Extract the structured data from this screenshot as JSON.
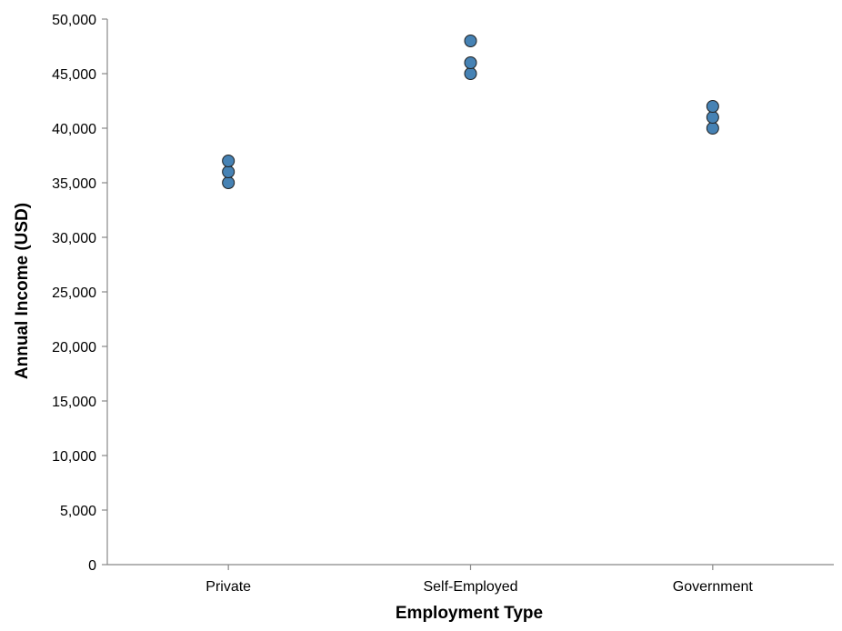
{
  "chart_data": {
    "type": "scatter",
    "title": "",
    "xlabel": "Employment Type",
    "ylabel": "Annual Income (USD)",
    "categories": [
      "Private",
      "Self-Employed",
      "Government"
    ],
    "ylim": [
      0,
      50000
    ],
    "yticks": [
      0,
      5000,
      10000,
      15000,
      20000,
      25000,
      30000,
      35000,
      40000,
      45000,
      50000
    ],
    "ytick_labels": [
      "0",
      "5,000",
      "10,000",
      "15,000",
      "20,000",
      "25,000",
      "30,000",
      "35,000",
      "40,000",
      "45,000",
      "50,000"
    ],
    "grid": false,
    "point_color": "#4682b4",
    "point_stroke": "#1f1f1f",
    "points": [
      {
        "x": "Private",
        "y": 35000
      },
      {
        "x": "Private",
        "y": 36000
      },
      {
        "x": "Private",
        "y": 37000
      },
      {
        "x": "Self-Employed",
        "y": 45000
      },
      {
        "x": "Self-Employed",
        "y": 46000
      },
      {
        "x": "Self-Employed",
        "y": 48000
      },
      {
        "x": "Government",
        "y": 40000
      },
      {
        "x": "Government",
        "y": 41000
      },
      {
        "x": "Government",
        "y": 42000
      }
    ]
  }
}
